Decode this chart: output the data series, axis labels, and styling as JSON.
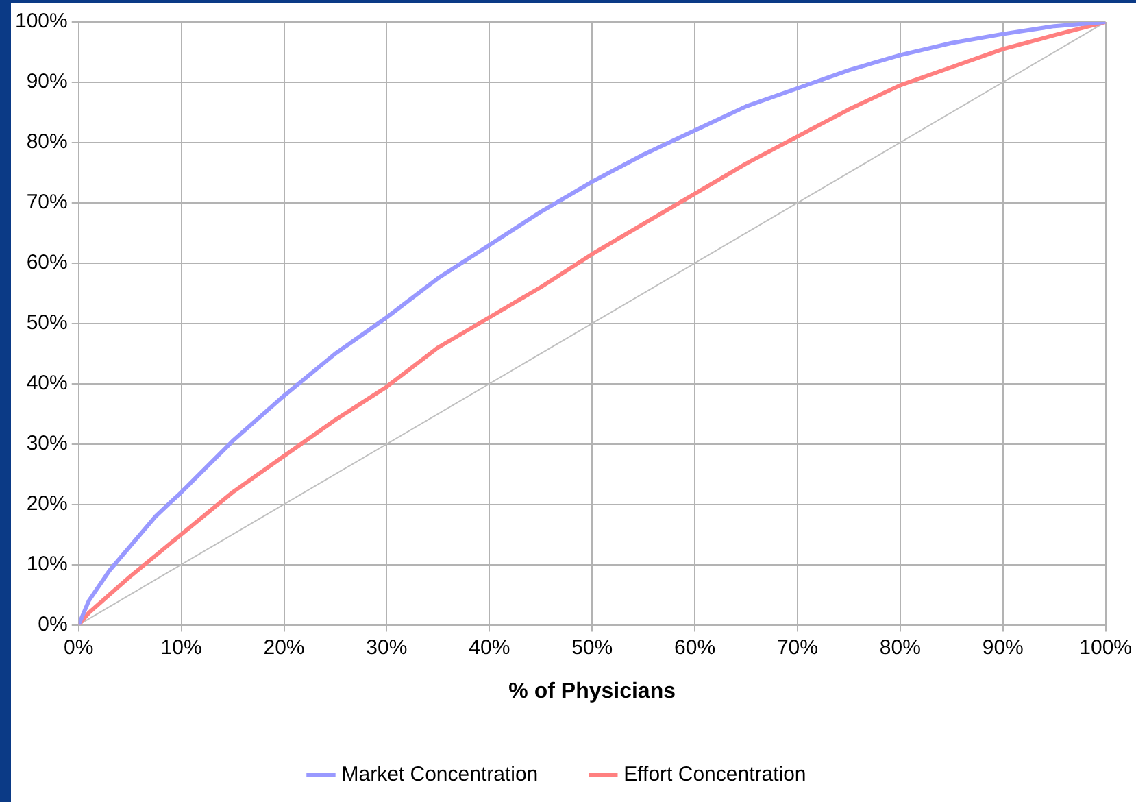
{
  "chart_data": {
    "type": "line",
    "xlabel": "% of Physicians",
    "xlim": [
      0,
      100
    ],
    "ylim": [
      0,
      100
    ],
    "xticks": [
      {
        "value": 0,
        "label": "0%"
      },
      {
        "value": 10,
        "label": "10%"
      },
      {
        "value": 20,
        "label": "20%"
      },
      {
        "value": 30,
        "label": "30%"
      },
      {
        "value": 40,
        "label": "40%"
      },
      {
        "value": 50,
        "label": "50%"
      },
      {
        "value": 60,
        "label": "60%"
      },
      {
        "value": 70,
        "label": "70%"
      },
      {
        "value": 80,
        "label": "80%"
      },
      {
        "value": 90,
        "label": "90%"
      },
      {
        "value": 100,
        "label": "100%"
      }
    ],
    "yticks": [
      {
        "value": 0,
        "label": "0%"
      },
      {
        "value": 10,
        "label": "10%"
      },
      {
        "value": 20,
        "label": "20%"
      },
      {
        "value": 30,
        "label": "30%"
      },
      {
        "value": 40,
        "label": "40%"
      },
      {
        "value": 50,
        "label": "50%"
      },
      {
        "value": 60,
        "label": "60%"
      },
      {
        "value": 70,
        "label": "70%"
      },
      {
        "value": 80,
        "label": "80%"
      },
      {
        "value": 90,
        "label": "90%"
      },
      {
        "value": 100,
        "label": "100%"
      }
    ],
    "grid": true,
    "legend": "bottom",
    "marker": "none",
    "line_style": "solid",
    "series": [
      {
        "name": "Market Concentration",
        "color": "#9999ff",
        "x": [
          0,
          1,
          3,
          5,
          7.5,
          10,
          15,
          20,
          25,
          30,
          35,
          40,
          45,
          50,
          55,
          60,
          65,
          70,
          75,
          80,
          85,
          90,
          95,
          100
        ],
        "values": [
          0,
          4,
          9,
          13,
          18,
          22,
          30.5,
          38,
          45,
          51,
          57.5,
          63,
          68.5,
          73.5,
          78,
          82,
          86,
          89,
          92,
          94.5,
          96.5,
          98,
          99.3,
          100
        ]
      },
      {
        "name": "Effort Concentration",
        "color": "#ff8080",
        "x": [
          0,
          1,
          3,
          5,
          7.5,
          10,
          15,
          20,
          25,
          30,
          35,
          40,
          45,
          50,
          55,
          60,
          65,
          70,
          75,
          80,
          85,
          90,
          95,
          100
        ],
        "values": [
          0,
          2,
          5,
          8,
          11.5,
          15,
          22,
          28,
          34,
          39.5,
          46,
          51,
          56,
          61.5,
          66.5,
          71.5,
          76.5,
          81,
          85.5,
          89.5,
          92.5,
          95.5,
          97.8,
          100
        ]
      },
      {
        "color": "#c0c0c0",
        "x": [
          0,
          100
        ],
        "values": [
          0,
          100
        ]
      }
    ]
  }
}
